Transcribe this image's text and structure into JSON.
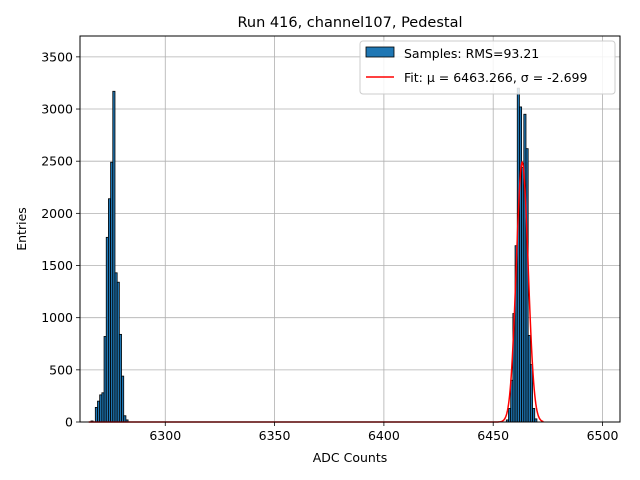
{
  "chart_data": {
    "type": "histogram",
    "title": "Run 416, channel107, Pedestal",
    "xlabel": "ADC Counts",
    "ylabel": "Entries",
    "xlim": [
      2060,
      6508
    ],
    "ylim": [
      0,
      3700
    ],
    "xticks": [
      6300,
      6350,
      6400,
      6450,
      6500
    ],
    "yticks": [
      0,
      500,
      1000,
      1500,
      2000,
      2500,
      3000,
      3500
    ],
    "grid": true,
    "legend_position": "top-right",
    "colors": {
      "bars": "#1f77b4",
      "bar_edge": "#000000",
      "fit": "#ff0000",
      "grid": "#b0b0b0"
    },
    "series": [
      {
        "name": "Samples: RMS=93.21",
        "kind": "histogram",
        "bins": [
          {
            "x": 6266,
            "count": 10
          },
          {
            "x": 6268,
            "count": 140
          },
          {
            "x": 6269,
            "count": 200
          },
          {
            "x": 6270,
            "count": 260
          },
          {
            "x": 6271,
            "count": 280
          },
          {
            "x": 6272,
            "count": 820
          },
          {
            "x": 6273,
            "count": 1770
          },
          {
            "x": 6274,
            "count": 2140
          },
          {
            "x": 6275,
            "count": 2490
          },
          {
            "x": 6276,
            "count": 3170
          },
          {
            "x": 6277,
            "count": 1430
          },
          {
            "x": 6278,
            "count": 1340
          },
          {
            "x": 6279,
            "count": 840
          },
          {
            "x": 6280,
            "count": 440
          },
          {
            "x": 6281,
            "count": 60
          },
          {
            "x": 6282,
            "count": 20
          },
          {
            "x": 6456,
            "count": 20
          },
          {
            "x": 6457,
            "count": 130
          },
          {
            "x": 6458,
            "count": 400
          },
          {
            "x": 6459,
            "count": 1040
          },
          {
            "x": 6460,
            "count": 1690
          },
          {
            "x": 6461,
            "count": 3200
          },
          {
            "x": 6462,
            "count": 3020
          },
          {
            "x": 6463,
            "count": 2440
          },
          {
            "x": 6464,
            "count": 2950
          },
          {
            "x": 6465,
            "count": 2620
          },
          {
            "x": 6466,
            "count": 830
          },
          {
            "x": 6467,
            "count": 550
          },
          {
            "x": 6468,
            "count": 130
          },
          {
            "x": 6469,
            "count": 30
          }
        ]
      },
      {
        "name": "Fit: μ = 6463.266, σ = -2.699",
        "kind": "gaussian_fit",
        "mu": 6463.266,
        "sigma": -2.699,
        "amplitude": 2490,
        "x_range": [
          6265,
          6473
        ]
      }
    ]
  }
}
